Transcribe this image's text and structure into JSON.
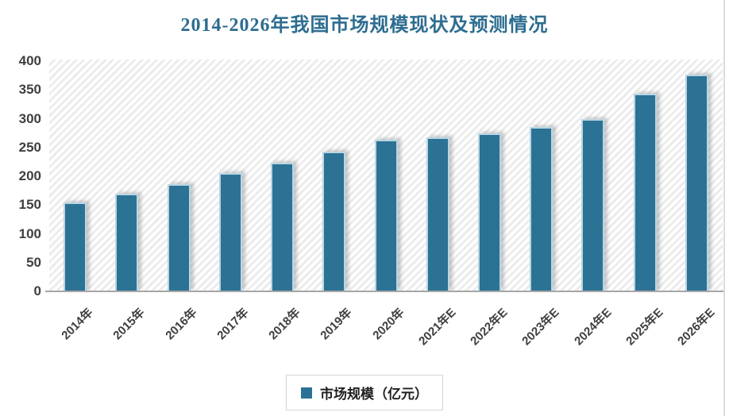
{
  "title": "2014-2026年我国市场规模现状及预测情况",
  "legend": {
    "label": "市场规模（亿元）"
  },
  "colors": {
    "title": "#2d6d90",
    "bar": "#2b7294",
    "bar_edge": "#b9d6e4",
    "axis_line": "#a6a6a6",
    "tick_text": "#3f3f3f",
    "legend_border": "#d4d4d4"
  },
  "chart_data": {
    "type": "bar",
    "title": "2014-2026年我国市场规模现状及预测情况",
    "categories": [
      "2014年",
      "2015年",
      "2016年",
      "2017年",
      "2018年",
      "2019年",
      "2020年",
      "2021年E",
      "2022年E",
      "2023年E",
      "2024年E",
      "2025年E",
      "2026年E"
    ],
    "series": [
      {
        "name": "市场规模（亿元）",
        "values": [
          154,
          170,
          186,
          205,
          224,
          243,
          263,
          268,
          275,
          286,
          300,
          344,
          376
        ]
      }
    ],
    "xlabel": "",
    "ylabel": "",
    "ylim": [
      0,
      400
    ],
    "yticks": [
      0,
      50,
      100,
      150,
      200,
      250,
      300,
      350,
      400
    ],
    "grid": false,
    "x_tick_rotation": -45,
    "legend_position": "bottom",
    "plot_background": "diagonal-hatch"
  }
}
